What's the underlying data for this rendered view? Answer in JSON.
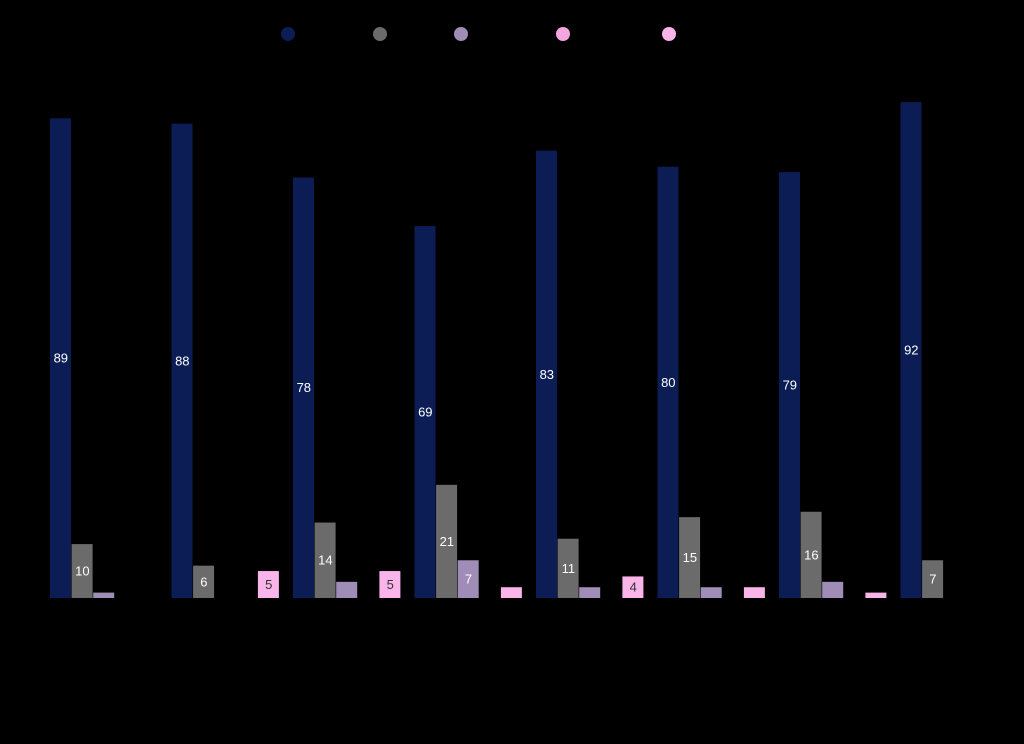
{
  "chart_data": {
    "type": "bar",
    "ylim": [
      0,
      100
    ],
    "series": [
      {
        "color": "#0c1d55",
        "values": [
          89,
          88,
          78,
          69,
          83,
          80,
          79,
          92
        ]
      },
      {
        "color": "#6b6b6b",
        "values": [
          10,
          6,
          14,
          21,
          11,
          15,
          16,
          7
        ]
      },
      {
        "color": "#a08db7",
        "values": [
          1,
          0,
          3,
          7,
          2,
          2,
          3,
          0
        ]
      },
      {
        "color": "#f5a6de",
        "values": [
          0,
          0,
          0,
          0,
          0,
          0,
          0,
          0
        ]
      },
      {
        "color": "#f9b4ea",
        "values": [
          0,
          5,
          5,
          2,
          4,
          2,
          1,
          0
        ]
      }
    ]
  }
}
